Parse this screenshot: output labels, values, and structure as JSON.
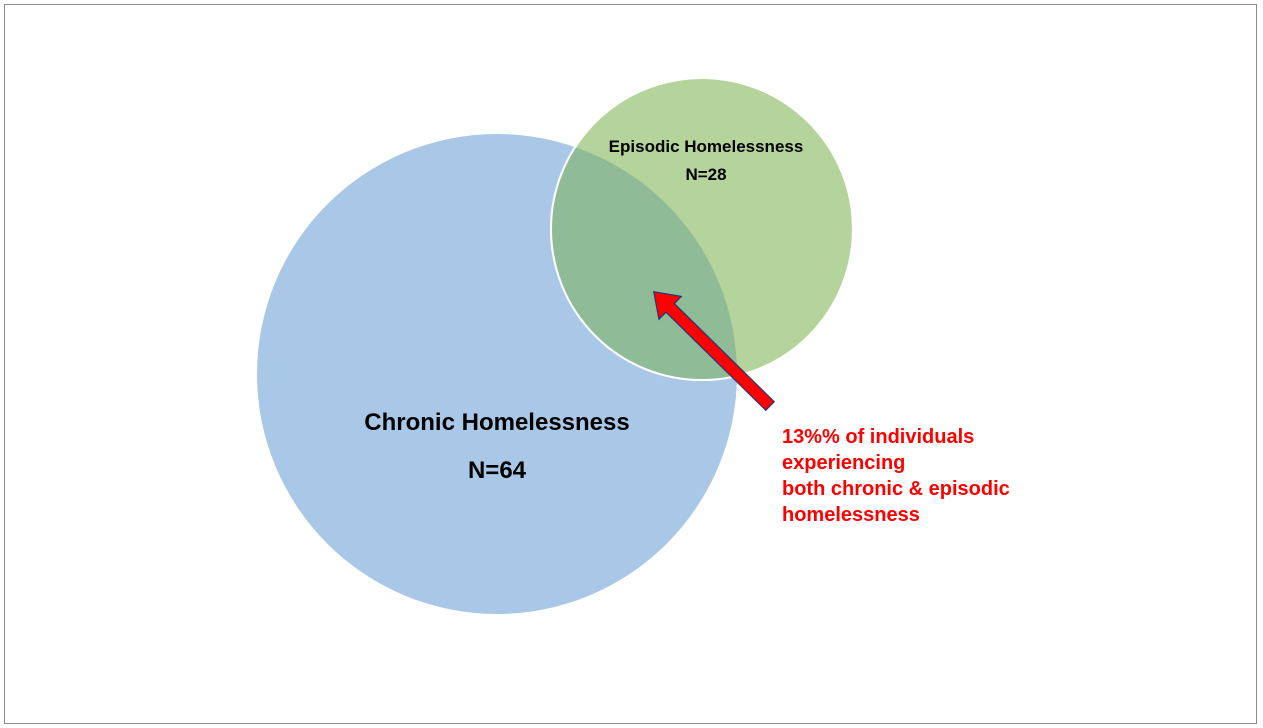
{
  "sets": {
    "chronic": {
      "label": "Chronic Homelessness",
      "count_label": "N=64",
      "n": 64,
      "color": "#a9c8e8"
    },
    "episodic": {
      "label": "Episodic Homelessness",
      "count_label": "N=28",
      "n": 28,
      "color": "#b5d49c"
    },
    "overlap_color": "#8fbb96"
  },
  "callout": {
    "lines": [
      "13%% of individuals",
      "experiencing",
      "both chronic & episodic",
      "homelessness"
    ],
    "color": "#ff0000"
  },
  "arrow": {
    "color": "#ff0000",
    "outline": "#1f3a7a"
  }
}
